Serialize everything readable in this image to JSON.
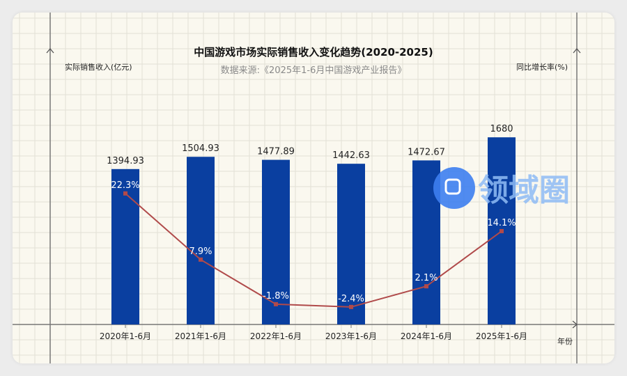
{
  "chart_data": {
    "type": "bar",
    "title": "中国游戏市场实际销售收入变化趋势(2020-2025)",
    "subtitle": "数据来源:《2025年1-6月中国游戏产业报告》",
    "ylabel_left": "实际销售收入(亿元)",
    "ylabel_right": "同比增长率(%)",
    "xlabel": "年份",
    "categories": [
      "2020年1-6月",
      "2021年1-6月",
      "2022年1-6月",
      "2023年1-6月",
      "2024年1-6月",
      "2025年1-6月"
    ],
    "series": [
      {
        "name": "实际销售收入",
        "type": "bar",
        "color": "#0a3fa0",
        "values": [
          1394.93,
          1504.93,
          1477.89,
          1442.63,
          1472.67,
          1680
        ],
        "labels": [
          "1394.93",
          "1504.93",
          "1477.89",
          "1442.63",
          "1472.67",
          "1680"
        ]
      },
      {
        "name": "同比增长率",
        "type": "line",
        "color": "#b04a4a",
        "values": [
          22.3,
          7.9,
          -1.8,
          -2.4,
          2.1,
          14.1
        ],
        "labels": [
          "22.3%",
          "7.9%",
          "-1.8%",
          "-2.4%",
          "2.1%",
          "14.1%"
        ]
      }
    ],
    "grid": true
  },
  "watermark": "领域圈"
}
